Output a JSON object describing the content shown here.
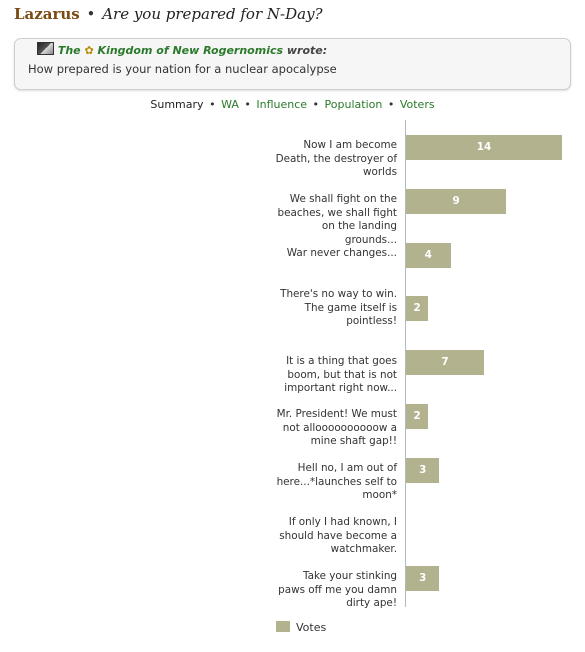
{
  "header": {
    "region": "Lazarus",
    "separator": "•",
    "question": "Are you prepared for N-Day?"
  },
  "quote": {
    "prefix": "The",
    "nation": "Kingdom of New Rogernomics",
    "wrote": "wrote:",
    "body": "How prepared is your nation for a nuclear apocalypse"
  },
  "tabs": [
    {
      "label": "Summary",
      "active": true
    },
    {
      "label": "WA",
      "active": false
    },
    {
      "label": "Influence",
      "active": false
    },
    {
      "label": "Population",
      "active": false
    },
    {
      "label": "Voters",
      "active": false
    }
  ],
  "chart_data": {
    "type": "bar",
    "orientation": "horizontal",
    "categories": [
      "Now I am become Death, the destroyer of worlds",
      "We shall fight on the beaches, we shall fight on the landing grounds...",
      "War never changes...",
      "There's no way to win. The game itself is pointless!",
      "It is a thing that goes boom, but that is not important right now...",
      "Mr. President! We must not alloooooooooow a mine shaft gap!!",
      "Hell no, I am out of here...*launches self to moon*",
      "If only I had known, I should have become a watchmaker.",
      "Take your stinking paws off me you damn dirty ape!"
    ],
    "series": [
      {
        "name": "Votes",
        "values": [
          14,
          9,
          4,
          2,
          7,
          2,
          3,
          0,
          3
        ]
      }
    ],
    "bar_color": "#b3b28f",
    "legend": "bottom"
  }
}
